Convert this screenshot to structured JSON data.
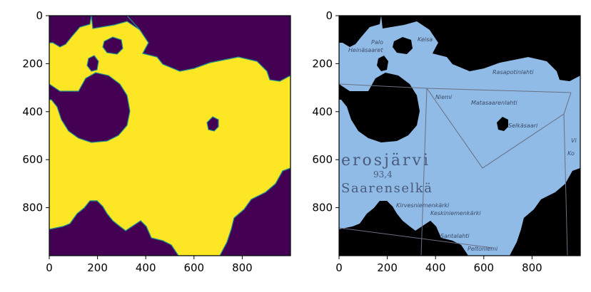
{
  "chart_data": [
    {
      "type": "heatmap",
      "title": "",
      "xlabel": "",
      "ylabel": "",
      "xlim": [
        0,
        1000
      ],
      "ylim": [
        1000,
        0
      ],
      "xticks": [
        0,
        200,
        400,
        600,
        800
      ],
      "yticks": [
        0,
        200,
        400,
        600,
        800
      ],
      "colormap": {
        "low": "#440154",
        "high": "#fde725",
        "edge": "#21918c"
      },
      "values": [
        0,
        1
      ],
      "grid": false
    },
    {
      "type": "heatmap",
      "title": "",
      "xlabel": "",
      "ylabel": "",
      "xlim": [
        0,
        1000
      ],
      "ylim": [
        1000,
        0
      ],
      "xticks": [
        0,
        200,
        400,
        600,
        800
      ],
      "yticks": [
        0,
        200,
        400,
        600,
        800
      ],
      "colormap": {
        "background": "#000000",
        "water": "#8fbbe6"
      },
      "grid": false,
      "map_labels": {
        "lake_name": "erosjärvi",
        "elevation": "93,4",
        "basin_name": "Saarenselkä",
        "heinasaaret": "Heinäsaaret",
        "paloniemi": "Palo",
        "keisala": "Keisa",
        "niemi": "Niemi",
        "matasaarenlahti": "Matasaarenlahti",
        "selkasaari": "Selkäsaari",
        "rasapohdanlahti": "Rasapotinlahti",
        "kirvesniemenkarki": "Kirvesniemenkärki",
        "keskiniemenkarki": "Keskiniemenkärki",
        "santalahti": "Santalahti",
        "peltoniemi": "Peltoniemi",
        "vi": "Vi",
        "ko": "Ko"
      }
    }
  ]
}
